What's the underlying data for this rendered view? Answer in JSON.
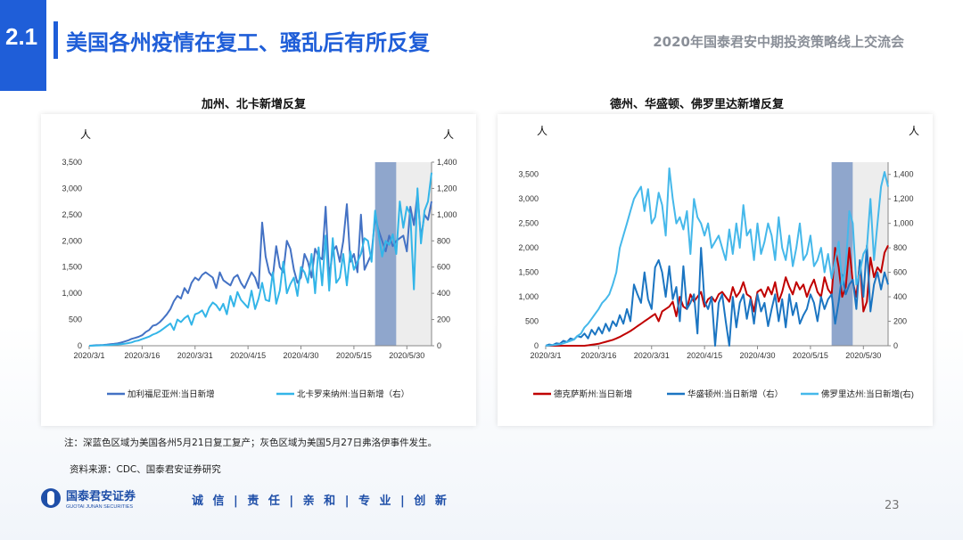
{
  "header": {
    "section_number": "2.1",
    "title": "美国各州疫情在复工、骚乱后有所反复",
    "right_text": "2020年国泰君安中期投资策略线上交流会"
  },
  "footer": {
    "company_cn": "国泰君安证券",
    "company_en": "GUOTAI JUNAN SECURITIES",
    "slogan": "诚 信 | 责 任 | 亲 和 | 专 业 | 创 新",
    "page_number": "23"
  },
  "notes": {
    "note": "注：深蓝色区域为美国各州5月21日复工复产；灰色区域为美国5月27日弗洛伊事件发生。",
    "source": "资料来源：CDC、国泰君安证券研究"
  },
  "colors": {
    "accent": "#1f5ed8",
    "reopen_band": "#8fa6cc",
    "protest_band": "#ededed",
    "california": "#4472c4",
    "north_carolina": "#33b5e8",
    "texas": "#c00000",
    "washington": "#1b75c2",
    "florida": "#45b8ea"
  },
  "chart_data": [
    {
      "type": "line",
      "title": "加州、北卡新增反复",
      "ylabel_left": "人",
      "ylabel_right": "人",
      "x_start": "2020/3/1",
      "x_end": "2020/6/6",
      "x_ticks": [
        "2020/3/1",
        "2020/3/16",
        "2020/3/31",
        "2020/4/15",
        "2020/4/30",
        "2020/5/15",
        "2020/5/30"
      ],
      "ylim_left": [
        0,
        3500
      ],
      "y_ticks_left": [
        "0",
        "500",
        "1,000",
        "1,500",
        "2,000",
        "2,500",
        "3,000",
        "3,500"
      ],
      "ylim_right": [
        0,
        1400
      ],
      "y_ticks_right": [
        "0",
        "200",
        "400",
        "600",
        "800",
        "1,000",
        "1,200",
        "1,400"
      ],
      "shaded_regions": [
        {
          "from": "2020/5/21",
          "to": "2020/5/27",
          "color": "reopen_band"
        },
        {
          "from": "2020/5/27",
          "to": "2020/6/6",
          "color": "protest_band"
        }
      ],
      "legend_position": "bottom",
      "series": [
        {
          "name": "加利福尼亚州:当日新增",
          "axis": "left",
          "color": "#4472c4",
          "values": [
            0,
            5,
            10,
            12,
            15,
            20,
            30,
            35,
            45,
            60,
            80,
            100,
            130,
            150,
            170,
            200,
            260,
            300,
            380,
            400,
            450,
            520,
            600,
            700,
            850,
            950,
            900,
            1100,
            1000,
            1200,
            1300,
            1250,
            1350,
            1400,
            1350,
            1300,
            1100,
            1400,
            1250,
            1200,
            1150,
            1300,
            1350,
            1200,
            1100,
            1250,
            1400,
            1300,
            1100,
            2350,
            1700,
            1400,
            1300,
            1900,
            1500,
            1400,
            2000,
            1850,
            1450,
            1200,
            1300,
            1750,
            1600,
            1300,
            1850,
            1700,
            1650,
            2650,
            1300,
            1800,
            1900,
            1600,
            2000,
            2700,
            1600,
            1750,
            1400,
            2500,
            1450,
            1600,
            1750,
            2450,
            2200,
            2000,
            1800,
            2100,
            1900,
            2000,
            2050,
            2100,
            1800,
            2650,
            2300,
            2900,
            2050,
            2500,
            2400,
            2750
          ]
        },
        {
          "name": "北卡罗来纳州:当日新增（右）",
          "axis": "right",
          "color": "#33b5e8",
          "values": [
            0,
            1,
            2,
            3,
            4,
            5,
            6,
            8,
            10,
            12,
            15,
            20,
            25,
            35,
            40,
            50,
            60,
            70,
            85,
            95,
            110,
            130,
            150,
            170,
            120,
            200,
            180,
            210,
            230,
            160,
            240,
            250,
            270,
            220,
            290,
            330,
            310,
            270,
            320,
            240,
            380,
            300,
            410,
            350,
            320,
            290,
            420,
            280,
            360,
            480,
            350,
            340,
            560,
            320,
            420,
            640,
            400,
            470,
            520,
            380,
            600,
            560,
            480,
            700,
            400,
            750,
            460,
            840,
            420,
            820,
            480,
            520,
            700,
            460,
            720,
            580,
            640,
            700,
            820,
            800,
            640,
            1030,
            850,
            680,
            800,
            770,
            850,
            700,
            1100,
            900,
            1060,
            1000,
            430,
            1200,
            780,
            1030,
            1100,
            1320
          ]
        }
      ]
    },
    {
      "type": "line",
      "title": "德州、华盛顿、佛罗里达新增反复",
      "ylabel_left": "人",
      "ylabel_right": "人",
      "x_start": "2020/3/1",
      "x_end": "2020/6/6",
      "x_ticks": [
        "2020/3/1",
        "2020/3/16",
        "2020/3/31",
        "2020/4/15",
        "2020/4/30",
        "2020/5/15",
        "2020/5/30"
      ],
      "ylim_left": [
        0,
        3750
      ],
      "y_ticks_left": [
        "0",
        "500",
        "1,000",
        "1,500",
        "2,000",
        "2,500",
        "3,000",
        "3,500"
      ],
      "ylim_right": [
        0,
        1500
      ],
      "y_ticks_right": [
        "0",
        "200",
        "400",
        "600",
        "800",
        "1,000",
        "1,200",
        "1,400"
      ],
      "shaded_regions": [
        {
          "from": "2020/5/21",
          "to": "2020/5/27",
          "color": "reopen_band"
        },
        {
          "from": "2020/5/27",
          "to": "2020/6/6",
          "color": "protest_band"
        }
      ],
      "legend_position": "bottom",
      "series": [
        {
          "name": "德克萨斯州:当日新增",
          "axis": "left",
          "color": "#c00000",
          "values": [
            0,
            0,
            0,
            0,
            0,
            0,
            0,
            0,
            0,
            0,
            0,
            0,
            10,
            20,
            30,
            40,
            60,
            80,
            100,
            120,
            150,
            180,
            220,
            260,
            300,
            350,
            400,
            450,
            500,
            550,
            600,
            650,
            500,
            700,
            750,
            800,
            900,
            600,
            1000,
            800,
            750,
            1050,
            900,
            1000,
            1100,
            800,
            950,
            1000,
            900,
            1050,
            1100,
            1000,
            900,
            1200,
            1000,
            1100,
            1300,
            1050,
            1000,
            700,
            1100,
            1150,
            1000,
            1200,
            1050,
            1300,
            900,
            1100,
            1400,
            1200,
            1050,
            1300,
            1150,
            1250,
            1000,
            1200,
            1350,
            1100,
            1000,
            1400,
            1150,
            1050,
            2000,
            1600,
            1000,
            1200,
            2000,
            1300,
            1000,
            1700,
            700,
            900,
            1800,
            1400,
            1600,
            1500,
            1900,
            2050
          ]
        },
        {
          "name": "华盛顿州:当日新增（右）",
          "axis": "right",
          "color": "#1b75c2",
          "values": [
            0,
            10,
            5,
            20,
            15,
            40,
            30,
            60,
            50,
            80,
            70,
            100,
            60,
            130,
            90,
            150,
            100,
            180,
            120,
            200,
            160,
            250,
            180,
            300,
            200,
            500,
            420,
            350,
            600,
            380,
            300,
            640,
            700,
            600,
            400,
            650,
            380,
            480,
            200,
            650,
            300,
            350,
            420,
            100,
            800,
            360,
            300,
            400,
            0,
            350,
            420,
            200,
            0,
            400,
            150,
            350,
            420,
            220,
            380,
            180,
            420,
            280,
            350,
            160,
            300,
            420,
            200,
            380,
            150,
            420,
            250,
            350,
            180,
            250,
            300,
            420,
            350,
            200,
            400,
            300,
            380,
            420,
            180,
            360,
            580,
            420,
            500,
            540,
            300,
            700,
            400,
            820,
            280,
            500,
            600,
            460,
            600,
            500
          ]
        },
        {
          "name": "佛罗里达州:当日新增(右)",
          "axis": "right",
          "color": "#45b8ea",
          "values": [
            0,
            2,
            5,
            8,
            12,
            20,
            30,
            40,
            50,
            80,
            100,
            150,
            180,
            220,
            260,
            300,
            350,
            380,
            420,
            500,
            600,
            800,
            900,
            1000,
            1100,
            1200,
            1250,
            1300,
            1100,
            1280,
            1000,
            1050,
            1250,
            1150,
            900,
            1450,
            1200,
            1000,
            1050,
            950,
            1100,
            750,
            1200,
            1050,
            1000,
            900,
            1000,
            800,
            850,
            900,
            800,
            700,
            950,
            750,
            1000,
            800,
            1150,
            900,
            950,
            700,
            1000,
            750,
            850,
            1000,
            900,
            700,
            1050,
            800,
            700,
            900,
            650,
            800,
            1000,
            700,
            750,
            900,
            650,
            700,
            800,
            600,
            750,
            550,
            700,
            850,
            500,
            650,
            1100,
            1000,
            500,
            600,
            750,
            800,
            1200,
            700,
            1000,
            1300,
            1420,
            1300
          ]
        }
      ]
    }
  ]
}
